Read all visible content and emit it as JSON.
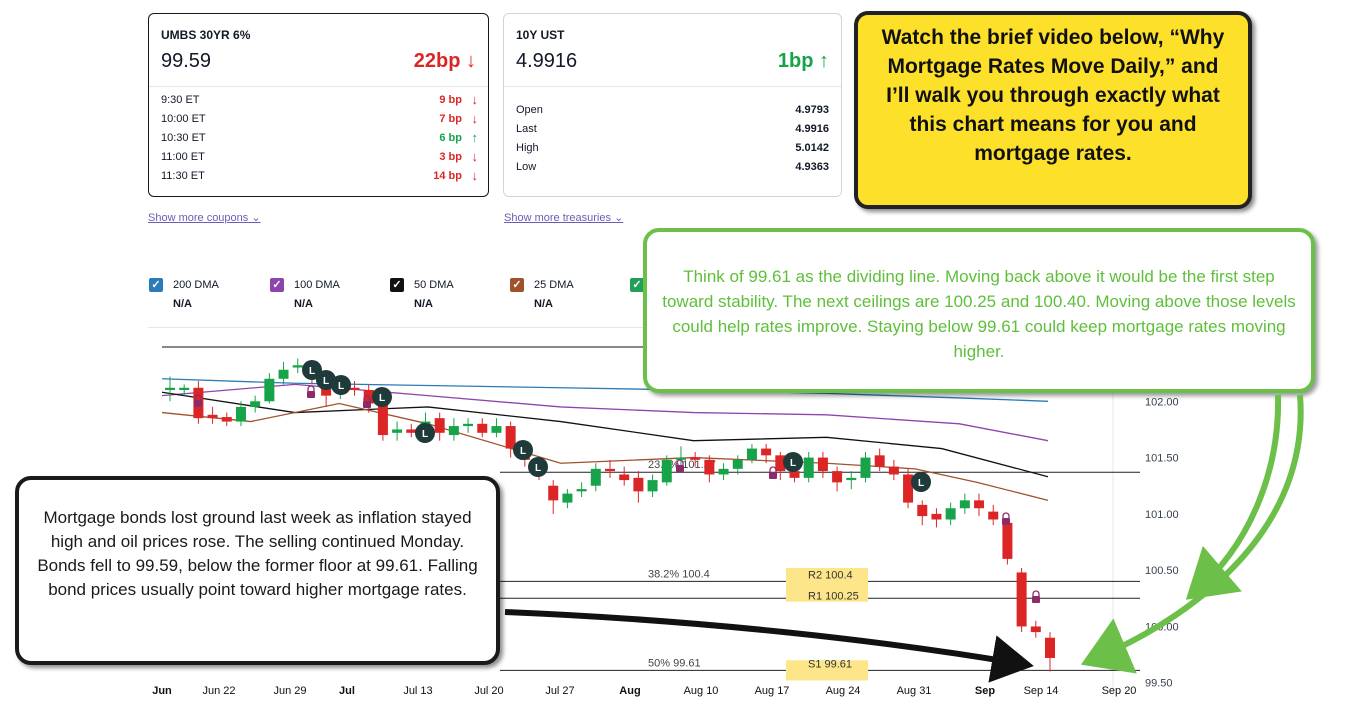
{
  "quote_cards": [
    {
      "title": "UMBS 30YR 6%",
      "price": "99.59",
      "change": "22bp",
      "direction": "down",
      "rows": [
        {
          "time": "9:30 ET",
          "value": "9 bp",
          "direction": "down"
        },
        {
          "time": "10:00 ET",
          "value": "7 bp",
          "direction": "down"
        },
        {
          "time": "10:30 ET",
          "value": "6 bp",
          "direction": "up"
        },
        {
          "time": "11:00 ET",
          "value": "3 bp",
          "direction": "down"
        },
        {
          "time": "11:30 ET",
          "value": "14 bp",
          "direction": "down"
        }
      ],
      "show_more": "Show more coupons"
    },
    {
      "title": "10Y UST",
      "price": "4.9916",
      "change": "1bp",
      "direction": "up",
      "rows": [
        {
          "label": "Open",
          "value": "4.9793"
        },
        {
          "label": "Last",
          "value": "4.9916"
        },
        {
          "label": "High",
          "value": "5.0142"
        },
        {
          "label": "Low",
          "value": "4.9363"
        }
      ],
      "show_more": "Show more treasuries"
    }
  ],
  "legend": [
    {
      "label": "200 DMA",
      "value": "N/A",
      "color": "#2b7bb9"
    },
    {
      "label": "100 DMA",
      "value": "N/A",
      "color": "#8e44ad"
    },
    {
      "label": "50 DMA",
      "value": "N/A",
      "color": "#111111"
    },
    {
      "label": "25 DMA",
      "value": "N/A",
      "color": "#a0522d"
    },
    {
      "label": "",
      "value": "",
      "color": "#22a05a"
    }
  ],
  "icons": {
    "check": "check-icon",
    "arrow_down": "arrow-down-icon",
    "arrow_up": "arrow-up-icon",
    "chevron": "chevron-down-icon",
    "lock": "lock-icon",
    "marker": "l-marker-icon"
  },
  "colors": {
    "up": "#16a34a",
    "down": "#dc2626",
    "green_callout": "#6cc04a",
    "yellow_callout": "#fde02a",
    "highlight": "#fde68a"
  },
  "callouts": {
    "yellow": "Watch the brief video below, “Why Mortgage Rates Move Daily,” and I’ll walk you through exactly what this chart means for you and mortgage rates.",
    "green": "Think of 99.61 as the dividing line. Moving back above it would be the first step toward stability. The next ceilings are 100.25 and 100.40. Moving above those levels could help rates improve. Staying below 99.61 could keep mortgage rates moving higher.",
    "black": "Mortgage bonds lost ground last week as inflation stayed high and oil prices rose. The selling continued Monday. Bonds fell to 99.59, below the former floor at 99.61. Falling bond prices usually point toward higher mortgage rates."
  },
  "chart_data": {
    "type": "candlestick",
    "x_tick_labels": [
      "Jun",
      "Jun 22",
      "Jun 29",
      "Jul",
      "Jul 13",
      "Jul 20",
      "Jul 27",
      "Aug",
      "Aug 10",
      "Aug 17",
      "Aug 24",
      "Aug 31",
      "Sep",
      "Sep 14",
      "Sep 20"
    ],
    "y_tick_labels": [
      "102.00",
      "101.50",
      "101.00",
      "100.50",
      "100.00",
      "99.50"
    ],
    "ylim": [
      99.48,
      102.5
    ],
    "levels": [
      {
        "label": "23.6% 101.37",
        "value": 101.37
      },
      {
        "label": "38.2% 100.4",
        "value": 100.4
      },
      {
        "label": "50% 99.61",
        "value": 99.61
      }
    ],
    "highlighted_levels": [
      {
        "label": "R2 100.4",
        "value": 100.4
      },
      {
        "label": "R1 100.25",
        "value": 100.25
      },
      {
        "label": "S1 99.61",
        "value": 99.61
      }
    ],
    "moving_averages": [
      {
        "name": "200 DMA",
        "color": "#2b7bb9",
        "points": [
          [
            0,
            102.2
          ],
          [
            0.15,
            102.16
          ],
          [
            0.3,
            102.14
          ],
          [
            0.45,
            102.12
          ],
          [
            0.6,
            102.1
          ],
          [
            0.75,
            102.07
          ],
          [
            0.9,
            102.03
          ],
          [
            1,
            102.0
          ]
        ]
      },
      {
        "name": "100 DMA",
        "color": "#8e44ad",
        "points": [
          [
            0,
            102.05
          ],
          [
            0.15,
            102.15
          ],
          [
            0.3,
            102.05
          ],
          [
            0.45,
            101.95
          ],
          [
            0.6,
            101.9
          ],
          [
            0.75,
            101.88
          ],
          [
            0.9,
            101.8
          ],
          [
            1,
            101.65
          ]
        ]
      },
      {
        "name": "50 DMA",
        "color": "#111111",
        "points": [
          [
            0,
            102.08
          ],
          [
            0.15,
            101.9
          ],
          [
            0.3,
            101.95
          ],
          [
            0.45,
            101.82
          ],
          [
            0.6,
            101.65
          ],
          [
            0.75,
            101.68
          ],
          [
            0.88,
            101.58
          ],
          [
            1,
            101.33
          ]
        ]
      },
      {
        "name": "25 DMA",
        "color": "#a0522d",
        "points": [
          [
            0,
            101.9
          ],
          [
            0.1,
            101.82
          ],
          [
            0.2,
            101.98
          ],
          [
            0.3,
            101.8
          ],
          [
            0.45,
            101.45
          ],
          [
            0.6,
            101.5
          ],
          [
            0.75,
            101.45
          ],
          [
            0.85,
            101.4
          ],
          [
            0.92,
            101.28
          ],
          [
            1,
            101.12
          ]
        ]
      }
    ],
    "candles": [
      [
        102.1,
        102.12,
        102.22,
        102.0
      ],
      [
        102.1,
        102.12,
        102.15,
        102.05
      ],
      [
        102.12,
        101.85,
        102.18,
        101.8
      ],
      [
        101.88,
        101.85,
        101.95,
        101.8
      ],
      [
        101.86,
        101.82,
        101.9,
        101.78
      ],
      [
        101.82,
        101.95,
        102.0,
        101.78
      ],
      [
        101.95,
        102.0,
        102.05,
        101.9
      ],
      [
        102.0,
        102.2,
        102.25,
        101.98
      ],
      [
        102.2,
        102.28,
        102.35,
        102.15
      ],
      [
        102.3,
        102.32,
        102.38,
        102.25
      ],
      [
        102.28,
        102.2,
        102.35,
        102.15
      ],
      [
        102.2,
        102.05,
        102.25,
        101.95
      ],
      [
        102.08,
        102.1,
        102.15,
        102.02
      ],
      [
        102.12,
        102.1,
        102.18,
        102.05
      ],
      [
        102.1,
        101.98,
        102.15,
        101.9
      ],
      [
        101.98,
        101.7,
        102.05,
        101.65
      ],
      [
        101.72,
        101.75,
        101.82,
        101.65
      ],
      [
        101.75,
        101.72,
        101.8,
        101.68
      ],
      [
        101.75,
        101.82,
        101.9,
        101.7
      ],
      [
        101.85,
        101.72,
        101.9,
        101.65
      ],
      [
        101.7,
        101.78,
        101.85,
        101.65
      ],
      [
        101.78,
        101.8,
        101.85,
        101.72
      ],
      [
        101.8,
        101.72,
        101.85,
        101.68
      ],
      [
        101.72,
        101.78,
        101.85,
        101.68
      ],
      [
        101.78,
        101.58,
        101.82,
        101.5
      ],
      [
        101.55,
        101.48,
        101.6,
        101.42
      ],
      [
        101.45,
        101.35,
        101.5,
        101.3
      ],
      [
        101.25,
        101.12,
        101.3,
        101.0
      ],
      [
        101.1,
        101.18,
        101.22,
        101.05
      ],
      [
        101.2,
        101.22,
        101.28,
        101.15
      ],
      [
        101.25,
        101.4,
        101.45,
        101.2
      ],
      [
        101.4,
        101.38,
        101.48,
        101.32
      ],
      [
        101.35,
        101.3,
        101.42,
        101.25
      ],
      [
        101.32,
        101.2,
        101.38,
        101.1
      ],
      [
        101.2,
        101.3,
        101.35,
        101.15
      ],
      [
        101.28,
        101.48,
        101.52,
        101.25
      ],
      [
        101.48,
        101.5,
        101.6,
        101.42
      ],
      [
        101.5,
        101.48,
        101.55,
        101.42
      ],
      [
        101.48,
        101.35,
        101.52,
        101.28
      ],
      [
        101.35,
        101.4,
        101.45,
        101.3
      ],
      [
        101.4,
        101.48,
        101.52,
        101.35
      ],
      [
        101.48,
        101.58,
        101.62,
        101.45
      ],
      [
        101.58,
        101.52,
        101.62,
        101.45
      ],
      [
        101.52,
        101.38,
        101.55,
        101.3
      ],
      [
        101.38,
        101.32,
        101.42,
        101.28
      ],
      [
        101.32,
        101.5,
        101.55,
        101.28
      ],
      [
        101.5,
        101.38,
        101.55,
        101.32
      ],
      [
        101.38,
        101.28,
        101.42,
        101.2
      ],
      [
        101.3,
        101.32,
        101.38,
        101.22
      ],
      [
        101.32,
        101.5,
        101.55,
        101.28
      ],
      [
        101.52,
        101.42,
        101.58,
        101.38
      ],
      [
        101.42,
        101.35,
        101.48,
        101.3
      ],
      [
        101.35,
        101.1,
        101.4,
        101.05
      ],
      [
        101.08,
        100.98,
        101.12,
        100.9
      ],
      [
        101.0,
        100.95,
        101.05,
        100.88
      ],
      [
        100.95,
        101.05,
        101.1,
        100.9
      ],
      [
        101.05,
        101.12,
        101.18,
        101.0
      ],
      [
        101.12,
        101.05,
        101.18,
        100.98
      ],
      [
        101.02,
        100.95,
        101.08,
        100.9
      ],
      [
        100.92,
        100.6,
        100.95,
        100.55
      ],
      [
        100.48,
        100.0,
        100.52,
        99.95
      ],
      [
        100.0,
        99.95,
        100.05,
        99.9
      ],
      [
        99.9,
        99.72,
        99.95,
        99.6
      ]
    ]
  }
}
